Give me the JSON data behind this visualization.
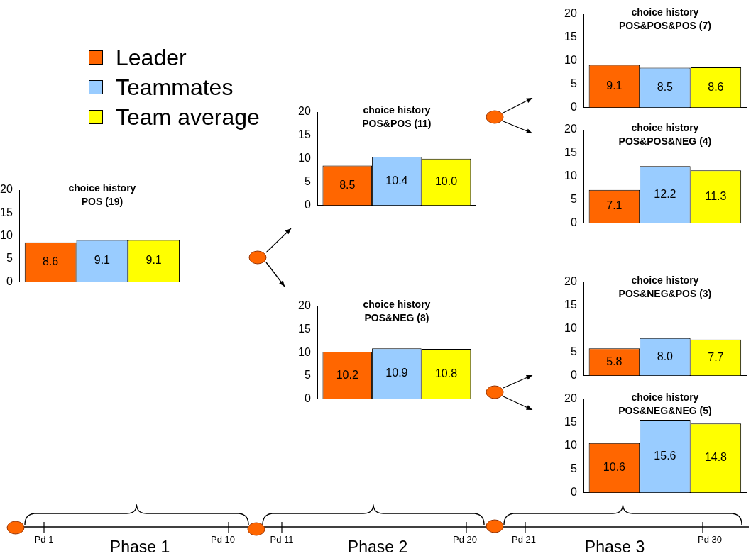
{
  "chart_data": [
    {
      "type": "bar",
      "title": "choice history",
      "subtitle": "POS (19)",
      "categories": [
        null
      ],
      "ylim": [
        0,
        20
      ],
      "yticks": [
        0,
        5,
        10,
        15,
        20
      ],
      "grid": false,
      "legend": "top right",
      "series": [
        {
          "name": "Leader",
          "color": "#ff6600",
          "values": [
            8.6
          ],
          "value_labels": [
            "8.6"
          ]
        },
        {
          "name": "Teammates",
          "color": "#99ccff",
          "values": [
            9.1
          ],
          "value_labels": [
            "9.1"
          ]
        },
        {
          "name": "Team average",
          "color": "#ffff00",
          "values": [
            9.1
          ],
          "value_labels": [
            "9.1"
          ]
        }
      ]
    },
    {
      "type": "bar",
      "title": "choice history",
      "subtitle": "POS&POS (11)",
      "categories": [
        null
      ],
      "ylim": [
        0,
        20
      ],
      "yticks": [
        0,
        5,
        10,
        15,
        20
      ],
      "grid": false,
      "series": [
        {
          "color": "#ff6600",
          "values": [
            8.5
          ],
          "value_labels": [
            "8.5"
          ]
        },
        {
          "color": "#99ccff",
          "values": [
            10.4
          ],
          "value_labels": [
            "10.4"
          ]
        },
        {
          "color": "#ffff00",
          "values": [
            10.0
          ],
          "value_labels": [
            "10.0"
          ]
        }
      ]
    },
    {
      "type": "bar",
      "title": "choice history",
      "subtitle": "POS&NEG (8)",
      "categories": [
        null
      ],
      "ylim": [
        0,
        20
      ],
      "yticks": [
        0,
        5,
        10,
        15,
        20
      ],
      "grid": false,
      "series": [
        {
          "color": "#ff6600",
          "values": [
            10.2
          ],
          "value_labels": [
            "10.2"
          ]
        },
        {
          "color": "#99ccff",
          "values": [
            10.9
          ],
          "value_labels": [
            "10.9"
          ]
        },
        {
          "color": "#ffff00",
          "values": [
            10.8
          ],
          "value_labels": [
            "10.8"
          ]
        }
      ]
    },
    {
      "type": "bar",
      "title": "choice history",
      "subtitle": "POS&POS&POS (7)",
      "categories": [
        null
      ],
      "ylim": [
        0,
        20
      ],
      "yticks": [
        0,
        5,
        10,
        15,
        20
      ],
      "grid": false,
      "series": [
        {
          "color": "#ff6600",
          "values": [
            9.1
          ],
          "value_labels": [
            "9.1"
          ]
        },
        {
          "color": "#99ccff",
          "values": [
            8.5
          ],
          "value_labels": [
            "8.5"
          ]
        },
        {
          "color": "#ffff00",
          "values": [
            8.6
          ],
          "value_labels": [
            "8.6"
          ]
        }
      ]
    },
    {
      "type": "bar",
      "title": "choice history",
      "subtitle": "POS&POS&NEG (4)",
      "categories": [
        null
      ],
      "ylim": [
        0,
        20
      ],
      "yticks": [
        0,
        5,
        10,
        15,
        20
      ],
      "grid": false,
      "series": [
        {
          "color": "#ff6600",
          "values": [
            7.1
          ],
          "value_labels": [
            "7.1"
          ]
        },
        {
          "color": "#99ccff",
          "values": [
            12.2
          ],
          "value_labels": [
            "12.2"
          ]
        },
        {
          "color": "#ffff00",
          "values": [
            11.3
          ],
          "value_labels": [
            "11.3"
          ]
        }
      ]
    },
    {
      "type": "bar",
      "title": "choice history",
      "subtitle": "POS&NEG&POS (3)",
      "categories": [
        null
      ],
      "ylim": [
        0,
        20
      ],
      "yticks": [
        0,
        5,
        10,
        15,
        20
      ],
      "grid": false,
      "series": [
        {
          "color": "#ff6600",
          "values": [
            5.8
          ],
          "value_labels": [
            "5.8"
          ]
        },
        {
          "color": "#99ccff",
          "values": [
            8.0
          ],
          "value_labels": [
            "8.0"
          ]
        },
        {
          "color": "#ffff00",
          "values": [
            7.7
          ],
          "value_labels": [
            "7.7"
          ]
        }
      ]
    },
    {
      "type": "bar",
      "title": "choice history",
      "subtitle": "POS&NEG&NEG (5)",
      "categories": [
        null
      ],
      "ylim": [
        0,
        20
      ],
      "yticks": [
        0,
        5,
        10,
        15,
        20
      ],
      "grid": false,
      "series": [
        {
          "color": "#ff6600",
          "values": [
            10.6
          ],
          "value_labels": [
            "10.6"
          ]
        },
        {
          "color": "#99ccff",
          "values": [
            15.6
          ],
          "value_labels": [
            "15.6"
          ]
        },
        {
          "color": "#ffff00",
          "values": [
            14.8
          ],
          "value_labels": [
            "14.8"
          ]
        }
      ]
    },
    {
      "type": "other",
      "annotations": [
        "Pd 1",
        "Pd 10",
        "Pd 11",
        "Pd 20",
        "Pd 21",
        "Pd 30",
        "Phase 1",
        "Phase 2",
        "Phase 3"
      ]
    }
  ]
}
